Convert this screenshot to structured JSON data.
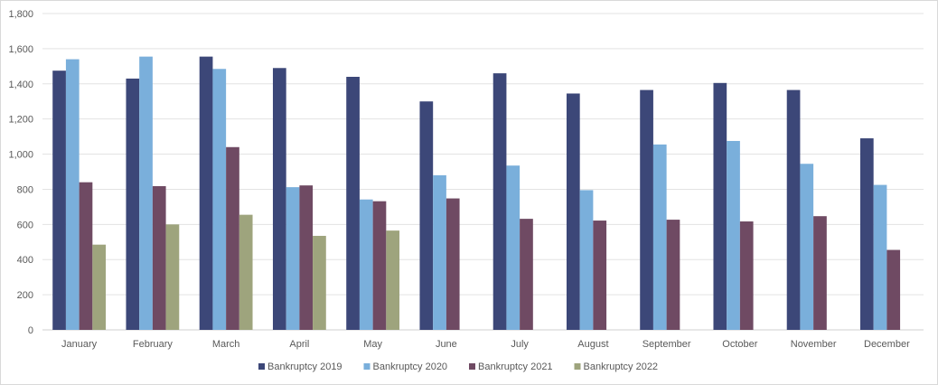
{
  "chart_data": {
    "type": "bar",
    "title": "",
    "xlabel": "",
    "ylabel": "",
    "ylim": [
      0,
      1800
    ],
    "yticks": [
      0,
      200,
      400,
      600,
      800,
      1000,
      1200,
      1400,
      1600,
      1800
    ],
    "ytick_labels": [
      "0",
      "200",
      "400",
      "600",
      "800",
      "1,000",
      "1,200",
      "1,400",
      "1,600",
      "1,800"
    ],
    "grid": true,
    "legend_position": "bottom",
    "categories": [
      "January",
      "February",
      "March",
      "April",
      "May",
      "June",
      "July",
      "August",
      "September",
      "October",
      "November",
      "December"
    ],
    "series": [
      {
        "name": "Bankruptcy 2019",
        "color": "#3c4778",
        "values": [
          1475,
          1430,
          1555,
          1490,
          1440,
          1300,
          1460,
          1345,
          1365,
          1405,
          1365,
          1090
        ]
      },
      {
        "name": "Bankruptcy 2020",
        "color": "#7aafdb",
        "values": [
          1540,
          1555,
          1485,
          812,
          742,
          880,
          935,
          795,
          1055,
          1075,
          945,
          825
        ]
      },
      {
        "name": "Bankruptcy 2021",
        "color": "#6f4a63",
        "values": [
          840,
          818,
          1040,
          822,
          732,
          748,
          632,
          622,
          627,
          617,
          647,
          455
        ]
      },
      {
        "name": "Bankruptcy 2022",
        "color": "#9ea47d",
        "values": [
          485,
          600,
          655,
          535,
          565,
          null,
          null,
          null,
          null,
          null,
          null,
          null
        ]
      }
    ]
  }
}
